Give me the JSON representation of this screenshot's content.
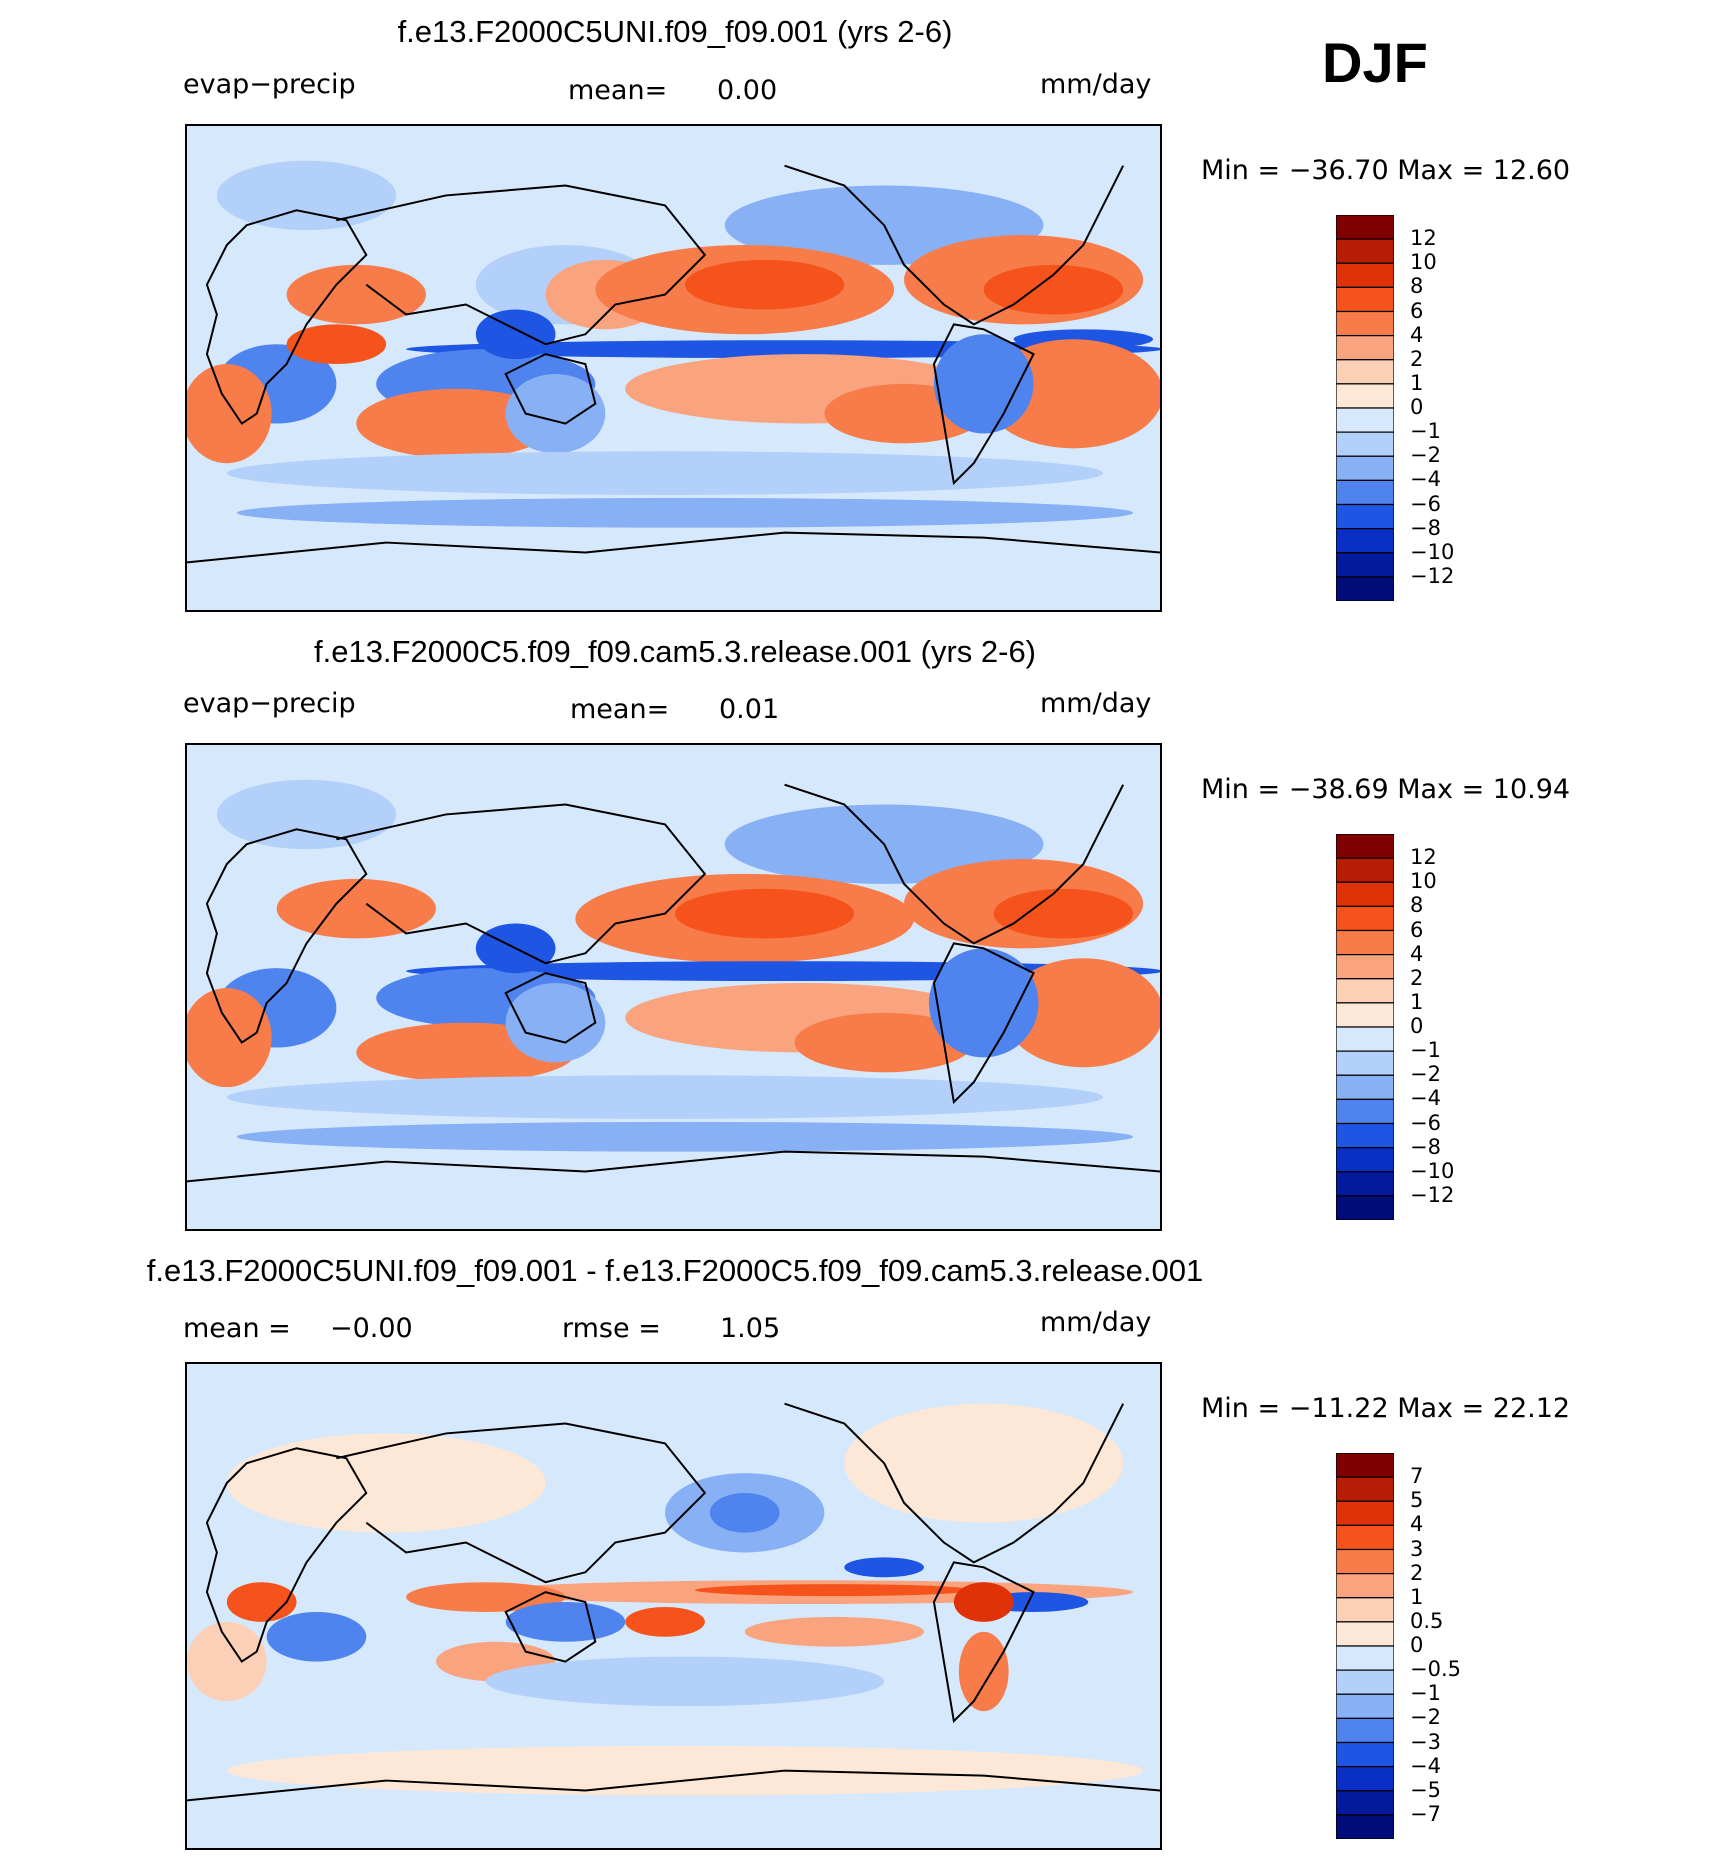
{
  "season": "DJF",
  "units": "mm/day",
  "panels": [
    {
      "title": "f.e13.F2000C5UNI.f09_f09.001 (yrs 2-6)",
      "left_label": "evap−precip",
      "center_label": "mean=",
      "center_value": "0.00",
      "minmax": "Min  =  −36.70  Max  =    12.60",
      "colorbar": [
        "12",
        "10",
        "8",
        "6",
        "4",
        "2",
        "1",
        "0",
        "−1",
        "−2",
        "−4",
        "−6",
        "−8",
        "−10",
        "−12"
      ]
    },
    {
      "title": "f.e13.F2000C5.f09_f09.cam5.3.release.001 (yrs 2-6)",
      "left_label": "evap−precip",
      "center_label": "mean=",
      "center_value": "0.01",
      "minmax": "Min  =  −38.69  Max  =    10.94",
      "colorbar": [
        "12",
        "10",
        "8",
        "6",
        "4",
        "2",
        "1",
        "0",
        "−1",
        "−2",
        "−4",
        "−6",
        "−8",
        "−10",
        "−12"
      ]
    },
    {
      "title": "f.e13.F2000C5UNI.f09_f09.001 - f.e13.F2000C5.f09_f09.cam5.3.release.001",
      "left_label": "mean  =",
      "left_value": "−0.00",
      "center_label": "rmse  =",
      "center_value": "1.05",
      "minmax": "Min  =  −11.22  Max  =    22.12",
      "colorbar": [
        "7",
        "5",
        "4",
        "3",
        "2",
        "1",
        "0.5",
        "0",
        "−0.5",
        "−1",
        "−2",
        "−3",
        "−4",
        "−5",
        "−7"
      ]
    }
  ],
  "colors": {
    "palette": [
      "#800000",
      "#b51e05",
      "#e03208",
      "#f5531b",
      "#f87c4a",
      "#f9a47f",
      "#fcd0b6",
      "#fde8d8",
      "#d6e8fb",
      "#b2d0f9",
      "#88b0f5",
      "#4f84ee",
      "#1f55e3",
      "#0a2fc4",
      "#031a9c",
      "#000c78"
    ]
  },
  "chart_data": [
    {
      "type": "heatmap",
      "title": "f.e13.F2000C5UNI.f09_f09.001 (yrs 2-6)",
      "variable": "evap−precip",
      "units": "mm/day",
      "mean": 0.0,
      "min": -36.7,
      "max": 12.6,
      "levels": [
        -12,
        -10,
        -8,
        -6,
        -4,
        -2,
        -1,
        0,
        1,
        2,
        4,
        6,
        8,
        10,
        12
      ]
    },
    {
      "type": "heatmap",
      "title": "f.e13.F2000C5.f09_f09.cam5.3.release.001 (yrs 2-6)",
      "variable": "evap−precip",
      "units": "mm/day",
      "mean": 0.01,
      "min": -38.69,
      "max": 10.94,
      "levels": [
        -12,
        -10,
        -8,
        -6,
        -4,
        -2,
        -1,
        0,
        1,
        2,
        4,
        6,
        8,
        10,
        12
      ]
    },
    {
      "type": "heatmap",
      "title": "f.e13.F2000C5UNI.f09_f09.001 - f.e13.F2000C5.f09_f09.cam5.3.release.001",
      "units": "mm/day",
      "mean": -0.0,
      "rmse": 1.05,
      "min": -11.22,
      "max": 22.12,
      "levels": [
        -7,
        -5,
        -4,
        -3,
        -2,
        -1,
        -0.5,
        0,
        0.5,
        1,
        2,
        3,
        4,
        5,
        7
      ]
    }
  ]
}
